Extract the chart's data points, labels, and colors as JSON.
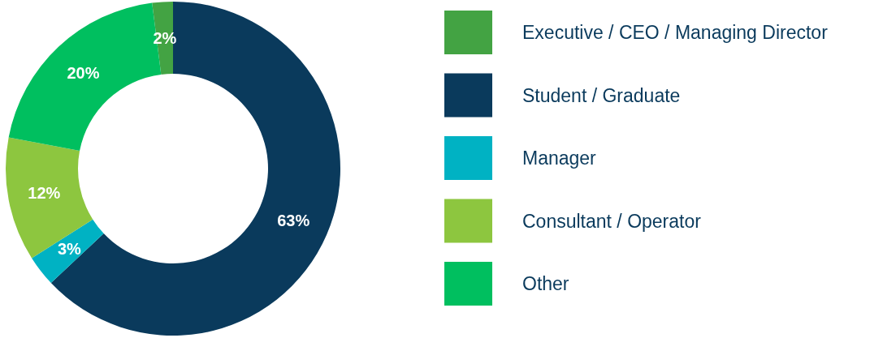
{
  "chart_data": {
    "type": "donut",
    "categories": [
      "Executive / CEO / Managing Director",
      "Student / Graduate",
      "Manager",
      "Consultant / Operator",
      "Other"
    ],
    "values": [
      2,
      63,
      3,
      12,
      20
    ],
    "colors": [
      "#43a343",
      "#0a3a5c",
      "#00b2c3",
      "#8dc63f",
      "#00bf5f"
    ],
    "value_labels": [
      "2%",
      "63%",
      "3%",
      "12%",
      "20%"
    ],
    "legend": "right"
  }
}
